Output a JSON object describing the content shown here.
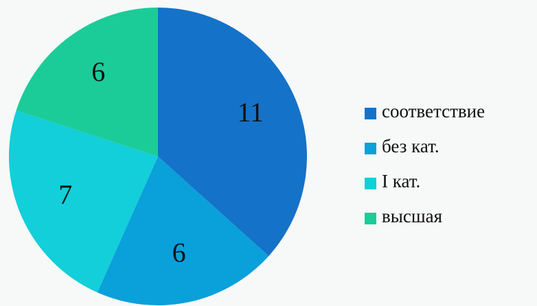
{
  "chart_data": {
    "type": "pie",
    "categories": [
      "соответствие",
      "без кат.",
      "I кат.",
      "высшая"
    ],
    "values": [
      11,
      6,
      7,
      6
    ],
    "colors": [
      "#1572c9",
      "#0aa0da",
      "#12cfd9",
      "#1bcc99"
    ],
    "legend": "right"
  }
}
